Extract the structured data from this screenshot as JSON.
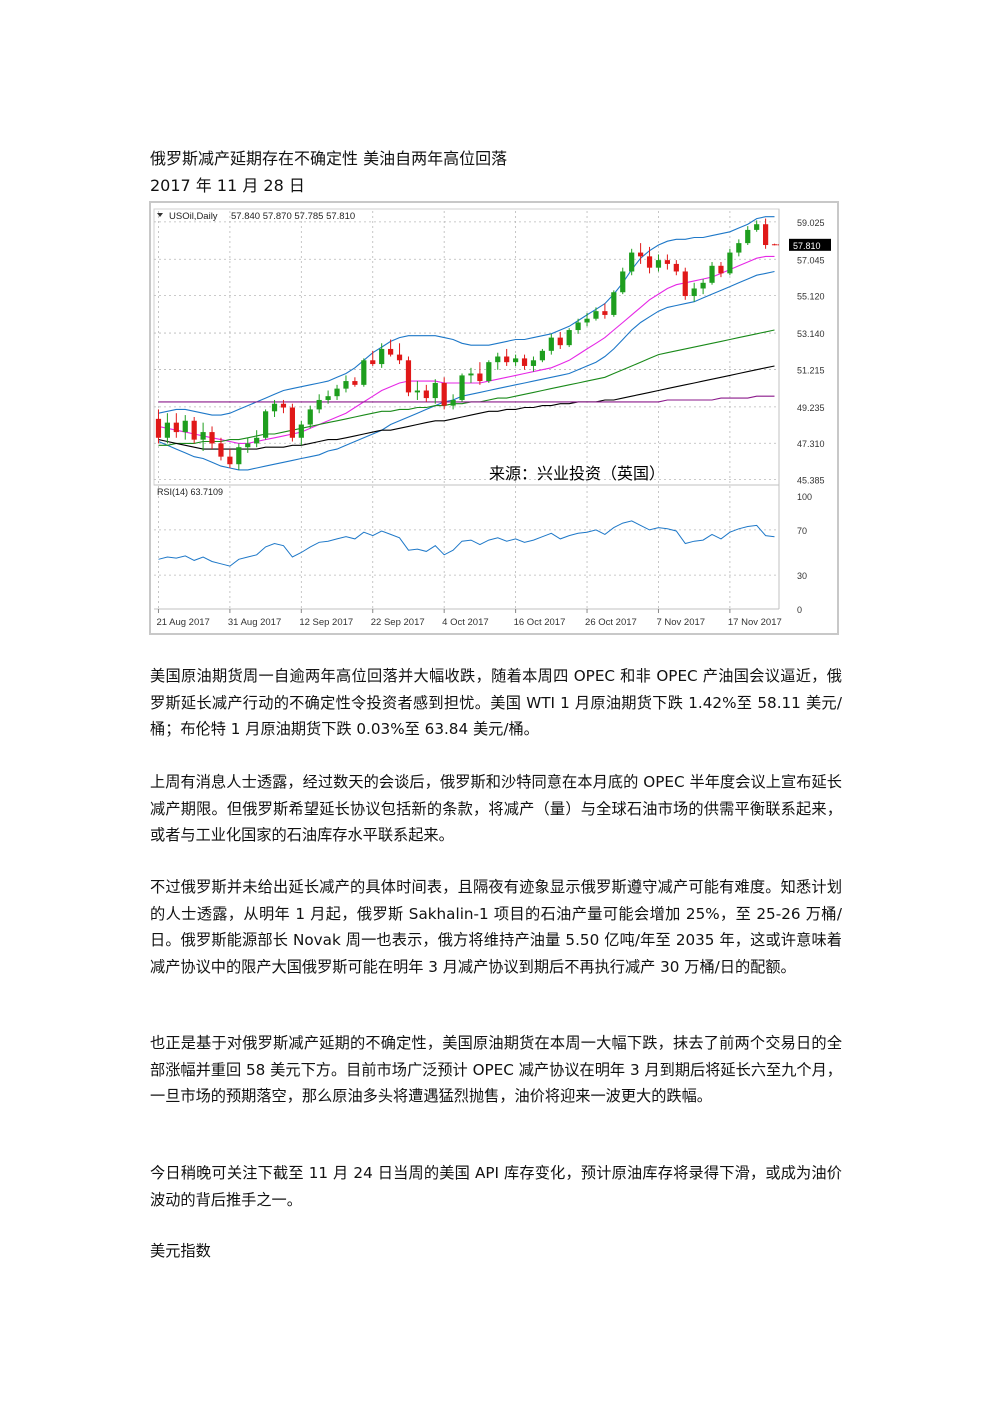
{
  "article": {
    "title": "俄罗斯减产延期存在不确定性 美油自两年高位回落",
    "date": "2017 年 11 月 28 日",
    "paragraphs": [
      "美国原油期货周一自逾两年高位回落并大幅收跌，随着本周四 OPEC 和非 OPEC 产油国会议逼近，俄罗斯延长减产行动的不确定性令投资者感到担忧。美国 WTI 1 月原油期货下跌 1.42%至 58.11 美元/桶；布伦特 1 月原油期货下跌 0.03%至 63.84 美元/桶。",
      "上周有消息人士透露，经过数天的会谈后，俄罗斯和沙特同意在本月底的 OPEC 半年度会议上宣布延长减产期限。但俄罗斯希望延长协议包括新的条款，将减产（量）与全球石油市场的供需平衡联系起来，或者与工业化国家的石油库存水平联系起来。",
      "不过俄罗斯并未给出延长减产的具体时间表，且隔夜有迹象显示俄罗斯遵守减产可能有难度。知悉计划的人士透露，从明年 1 月起，俄罗斯 Sakhalin-1 项目的石油产量可能会增加 25%，至 25-26 万桶/日。俄罗斯能源部长 Novak 周一也表示，俄方将维持产油量 5.50 亿吨/年至 2035 年，这或许意味着减产协议中的限产大国俄罗斯可能在明年 3 月减产协议到期后不再执行减产 30 万桶/日的配额。",
      "也正是基于对俄罗斯减产延期的不确定性，美国原油期货在本周一大幅下跌，抹去了前两个交易日的全部涨幅并重回 58 美元下方。目前市场广泛预计 OPEC 减产协议在明年 3 月到期后将延长六至九个月，一旦市场的预期落空，那么原油多头将遭遇猛烈抛售，油价将迎来一波更大的跌幅。",
      "今日稍晚可关注下截至 11 月 24 日当周的美国 API 库存变化，预计原油库存将录得下滑，或成为油价波动的背后推手之一。",
      "美元指数"
    ]
  },
  "chart_data": {
    "type": "candlestick",
    "title": "USOil,Daily  57.840 57.870 57.785 57.810",
    "symbol_label": "USOil,Daily",
    "ohlc_header": "57.840 57.870 57.785 57.810",
    "current_price_label": "57.810",
    "watermark": "来源：兴业投资（英国）",
    "price_axis": {
      "tick_labels": [
        "59.025",
        "57.045",
        "55.120",
        "53.140",
        "51.215",
        "49.235",
        "47.310",
        "45.385"
      ],
      "ticks": [
        59.025,
        57.045,
        55.12,
        53.14,
        51.215,
        49.235,
        47.31,
        45.385
      ],
      "ylim": [
        45.1,
        59.6
      ]
    },
    "x_tick_labels": [
      "21 Aug 2017",
      "31 Aug 2017",
      "12 Sep 2017",
      "22 Sep 2017",
      "4 Oct 2017",
      "16 Oct 2017",
      "26 Oct 2017",
      "7 Nov 2017",
      "17 Nov 2017"
    ],
    "x_tick_index": [
      0,
      8,
      16,
      24,
      32,
      40,
      48,
      56,
      64
    ],
    "candles": [
      {
        "o": 48.6,
        "h": 49.1,
        "l": 47.3,
        "c": 47.6
      },
      {
        "o": 47.6,
        "h": 48.9,
        "l": 47.3,
        "c": 48.4
      },
      {
        "o": 48.4,
        "h": 48.9,
        "l": 47.6,
        "c": 47.9
      },
      {
        "o": 47.9,
        "h": 48.8,
        "l": 47.5,
        "c": 48.5
      },
      {
        "o": 48.5,
        "h": 48.7,
        "l": 47.3,
        "c": 47.5
      },
      {
        "o": 47.5,
        "h": 48.4,
        "l": 46.9,
        "c": 47.9
      },
      {
        "o": 47.9,
        "h": 48.2,
        "l": 47.0,
        "c": 47.3
      },
      {
        "o": 47.3,
        "h": 47.6,
        "l": 46.4,
        "c": 46.6
      },
      {
        "o": 46.6,
        "h": 47.0,
        "l": 46.0,
        "c": 46.2
      },
      {
        "o": 46.2,
        "h": 47.3,
        "l": 45.9,
        "c": 47.1
      },
      {
        "o": 47.1,
        "h": 47.6,
        "l": 46.8,
        "c": 47.3
      },
      {
        "o": 47.3,
        "h": 48.0,
        "l": 47.1,
        "c": 47.6
      },
      {
        "o": 47.6,
        "h": 49.1,
        "l": 47.5,
        "c": 49.0
      },
      {
        "o": 49.0,
        "h": 49.6,
        "l": 48.7,
        "c": 49.4
      },
      {
        "o": 49.4,
        "h": 49.6,
        "l": 48.9,
        "c": 49.2
      },
      {
        "o": 49.2,
        "h": 49.4,
        "l": 47.4,
        "c": 47.6
      },
      {
        "o": 47.6,
        "h": 48.5,
        "l": 47.2,
        "c": 48.3
      },
      {
        "o": 48.3,
        "h": 49.3,
        "l": 48.1,
        "c": 49.1
      },
      {
        "o": 49.1,
        "h": 49.9,
        "l": 48.9,
        "c": 49.6
      },
      {
        "o": 49.6,
        "h": 50.1,
        "l": 49.4,
        "c": 49.8
      },
      {
        "o": 49.8,
        "h": 50.4,
        "l": 49.6,
        "c": 50.2
      },
      {
        "o": 50.2,
        "h": 50.9,
        "l": 50.0,
        "c": 50.6
      },
      {
        "o": 50.6,
        "h": 50.8,
        "l": 50.3,
        "c": 50.4
      },
      {
        "o": 50.4,
        "h": 51.8,
        "l": 50.3,
        "c": 51.7
      },
      {
        "o": 51.7,
        "h": 52.2,
        "l": 51.4,
        "c": 51.5
      },
      {
        "o": 51.5,
        "h": 52.6,
        "l": 51.3,
        "c": 52.3
      },
      {
        "o": 52.3,
        "h": 52.8,
        "l": 51.9,
        "c": 52.0
      },
      {
        "o": 52.0,
        "h": 52.6,
        "l": 51.5,
        "c": 51.7
      },
      {
        "o": 51.7,
        "h": 51.9,
        "l": 49.8,
        "c": 50.0
      },
      {
        "o": 50.0,
        "h": 50.6,
        "l": 49.6,
        "c": 50.1
      },
      {
        "o": 50.1,
        "h": 50.4,
        "l": 49.5,
        "c": 49.7
      },
      {
        "o": 49.7,
        "h": 50.7,
        "l": 49.4,
        "c": 50.5
      },
      {
        "o": 50.5,
        "h": 50.8,
        "l": 49.1,
        "c": 49.3
      },
      {
        "o": 49.3,
        "h": 49.9,
        "l": 49.1,
        "c": 49.6
      },
      {
        "o": 49.6,
        "h": 51.0,
        "l": 49.5,
        "c": 50.9
      },
      {
        "o": 50.9,
        "h": 51.3,
        "l": 50.5,
        "c": 51.0
      },
      {
        "o": 51.0,
        "h": 51.6,
        "l": 50.4,
        "c": 50.6
      },
      {
        "o": 50.6,
        "h": 51.7,
        "l": 50.5,
        "c": 51.6
      },
      {
        "o": 51.6,
        "h": 52.1,
        "l": 51.2,
        "c": 51.9
      },
      {
        "o": 51.9,
        "h": 52.3,
        "l": 51.4,
        "c": 51.6
      },
      {
        "o": 51.6,
        "h": 52.0,
        "l": 51.4,
        "c": 51.8
      },
      {
        "o": 51.8,
        "h": 52.0,
        "l": 51.2,
        "c": 51.4
      },
      {
        "o": 51.4,
        "h": 51.9,
        "l": 51.1,
        "c": 51.7
      },
      {
        "o": 51.7,
        "h": 52.3,
        "l": 51.6,
        "c": 52.2
      },
      {
        "o": 52.2,
        "h": 53.1,
        "l": 52.0,
        "c": 52.9
      },
      {
        "o": 52.9,
        "h": 53.2,
        "l": 52.3,
        "c": 52.5
      },
      {
        "o": 52.5,
        "h": 53.4,
        "l": 52.4,
        "c": 53.3
      },
      {
        "o": 53.3,
        "h": 53.9,
        "l": 53.1,
        "c": 53.7
      },
      {
        "o": 53.7,
        "h": 54.2,
        "l": 53.5,
        "c": 53.9
      },
      {
        "o": 53.9,
        "h": 54.5,
        "l": 53.8,
        "c": 54.3
      },
      {
        "o": 54.3,
        "h": 54.7,
        "l": 53.9,
        "c": 54.1
      },
      {
        "o": 54.1,
        "h": 55.4,
        "l": 54.0,
        "c": 55.3
      },
      {
        "o": 55.3,
        "h": 56.6,
        "l": 55.2,
        "c": 56.4
      },
      {
        "o": 56.4,
        "h": 57.6,
        "l": 56.2,
        "c": 57.4
      },
      {
        "o": 57.4,
        "h": 57.9,
        "l": 56.8,
        "c": 57.2
      },
      {
        "o": 57.2,
        "h": 57.7,
        "l": 56.3,
        "c": 56.6
      },
      {
        "o": 56.6,
        "h": 57.3,
        "l": 56.4,
        "c": 57.0
      },
      {
        "o": 57.0,
        "h": 57.3,
        "l": 56.5,
        "c": 56.8
      },
      {
        "o": 56.8,
        "h": 57.0,
        "l": 56.2,
        "c": 56.4
      },
      {
        "o": 56.4,
        "h": 56.6,
        "l": 54.9,
        "c": 55.1
      },
      {
        "o": 55.1,
        "h": 55.8,
        "l": 54.8,
        "c": 55.5
      },
      {
        "o": 55.5,
        "h": 56.0,
        "l": 55.2,
        "c": 55.8
      },
      {
        "o": 55.8,
        "h": 56.9,
        "l": 55.7,
        "c": 56.7
      },
      {
        "o": 56.7,
        "h": 56.9,
        "l": 56.1,
        "c": 56.3
      },
      {
        "o": 56.3,
        "h": 57.6,
        "l": 56.2,
        "c": 57.4
      },
      {
        "o": 57.4,
        "h": 58.1,
        "l": 57.2,
        "c": 57.9
      },
      {
        "o": 57.9,
        "h": 58.8,
        "l": 57.8,
        "c": 58.6
      },
      {
        "o": 58.6,
        "h": 59.1,
        "l": 58.5,
        "c": 58.9
      },
      {
        "o": 58.9,
        "h": 59.2,
        "l": 57.6,
        "c": 57.8
      },
      {
        "o": 57.84,
        "h": 57.87,
        "l": 57.785,
        "c": 57.81
      }
    ],
    "overlays": [
      {
        "name": "bollinger-upper",
        "color": "#1e78c8",
        "values": [
          48.9,
          49.0,
          49.1,
          49.1,
          49.0,
          48.9,
          48.8,
          48.8,
          48.9,
          49.1,
          49.3,
          49.5,
          49.7,
          49.9,
          50.1,
          50.2,
          50.3,
          50.4,
          50.5,
          50.6,
          50.8,
          51.0,
          51.3,
          51.7,
          52.1,
          52.4,
          52.7,
          52.9,
          53.0,
          53.0,
          53.0,
          53.0,
          52.9,
          52.8,
          52.6,
          52.5,
          52.5,
          52.5,
          52.6,
          52.7,
          52.8,
          52.8,
          52.9,
          53.0,
          53.1,
          53.3,
          53.5,
          53.8,
          54.1,
          54.4,
          54.7,
          55.2,
          55.8,
          56.5,
          57.1,
          57.5,
          57.8,
          58.0,
          58.1,
          58.1,
          58.2,
          58.2,
          58.3,
          58.4,
          58.5,
          58.7,
          58.9,
          59.2,
          59.3,
          59.3
        ]
      },
      {
        "name": "bollinger-mid",
        "color": "#e628e6",
        "values": [
          48.2,
          48.1,
          48.0,
          47.9,
          47.8,
          47.7,
          47.6,
          47.5,
          47.4,
          47.3,
          47.3,
          47.4,
          47.5,
          47.6,
          47.7,
          47.8,
          47.9,
          48.1,
          48.3,
          48.5,
          48.7,
          48.9,
          49.2,
          49.5,
          49.8,
          50.1,
          50.3,
          50.5,
          50.6,
          50.6,
          50.6,
          50.6,
          50.5,
          50.5,
          50.5,
          50.5,
          50.5,
          50.6,
          50.7,
          50.8,
          50.9,
          51.0,
          51.1,
          51.2,
          51.3,
          51.5,
          51.7,
          52.0,
          52.3,
          52.6,
          52.9,
          53.3,
          53.7,
          54.1,
          54.5,
          54.9,
          55.2,
          55.5,
          55.7,
          55.8,
          55.9,
          56.0,
          56.1,
          56.3,
          56.5,
          56.7,
          56.9,
          57.1,
          57.2,
          57.2
        ]
      },
      {
        "name": "bollinger-lower",
        "color": "#1e78c8",
        "values": [
          47.4,
          47.2,
          47.0,
          46.8,
          46.6,
          46.5,
          46.3,
          46.1,
          46.0,
          45.9,
          45.9,
          46.0,
          46.1,
          46.2,
          46.3,
          46.4,
          46.5,
          46.6,
          46.7,
          46.9,
          47.0,
          47.2,
          47.4,
          47.6,
          47.8,
          48.0,
          48.3,
          48.5,
          48.7,
          48.9,
          49.1,
          49.3,
          49.5,
          49.6,
          49.8,
          49.9,
          50.0,
          50.1,
          50.2,
          50.3,
          50.4,
          50.5,
          50.6,
          50.7,
          50.8,
          50.9,
          51.0,
          51.2,
          51.4,
          51.6,
          51.9,
          52.3,
          52.8,
          53.3,
          53.7,
          54.0,
          54.3,
          54.5,
          54.6,
          54.7,
          54.8,
          55.0,
          55.2,
          55.4,
          55.6,
          55.8,
          56.0,
          56.2,
          56.3,
          56.4
        ]
      },
      {
        "name": "sma-green",
        "color": "#1a8a1a",
        "values": [
          47.2,
          47.2,
          47.3,
          47.3,
          47.3,
          47.4,
          47.4,
          47.4,
          47.5,
          47.5,
          47.6,
          47.7,
          47.8,
          47.8,
          47.9,
          48.0,
          48.1,
          48.2,
          48.3,
          48.4,
          48.5,
          48.6,
          48.7,
          48.8,
          48.9,
          49.0,
          49.0,
          49.1,
          49.1,
          49.2,
          49.2,
          49.3,
          49.3,
          49.4,
          49.4,
          49.5,
          49.5,
          49.6,
          49.7,
          49.7,
          49.8,
          49.9,
          50.0,
          50.1,
          50.2,
          50.3,
          50.4,
          50.5,
          50.6,
          50.7,
          50.8,
          51.0,
          51.2,
          51.4,
          51.6,
          51.8,
          52.0,
          52.1,
          52.2,
          52.3,
          52.4,
          52.5,
          52.6,
          52.7,
          52.8,
          52.9,
          53.0,
          53.1,
          53.2,
          53.3
        ]
      },
      {
        "name": "sma-black",
        "color": "#000000",
        "values": [
          47.5,
          47.4,
          47.3,
          47.2,
          47.1,
          47.0,
          47.0,
          47.0,
          47.0,
          47.0,
          47.0,
          47.0,
          47.1,
          47.1,
          47.1,
          47.2,
          47.2,
          47.3,
          47.4,
          47.5,
          47.5,
          47.6,
          47.7,
          47.8,
          47.9,
          48.0,
          48.0,
          48.1,
          48.2,
          48.3,
          48.4,
          48.5,
          48.5,
          48.6,
          48.7,
          48.8,
          48.9,
          49.0,
          49.0,
          49.1,
          49.1,
          49.2,
          49.2,
          49.3,
          49.3,
          49.4,
          49.4,
          49.5,
          49.5,
          49.5,
          49.6,
          49.6,
          49.7,
          49.8,
          49.9,
          50.0,
          50.1,
          50.2,
          50.3,
          50.4,
          50.5,
          50.6,
          50.7,
          50.8,
          50.9,
          51.0,
          51.1,
          51.2,
          51.3,
          51.4
        ]
      },
      {
        "name": "sma-purple",
        "color": "#8b1a8b",
        "values": [
          49.5,
          49.5,
          49.5,
          49.5,
          49.5,
          49.5,
          49.5,
          49.5,
          49.5,
          49.5,
          49.5,
          49.5,
          49.5,
          49.5,
          49.5,
          49.5,
          49.5,
          49.5,
          49.5,
          49.5,
          49.5,
          49.5,
          49.5,
          49.5,
          49.5,
          49.5,
          49.5,
          49.5,
          49.5,
          49.5,
          49.5,
          49.5,
          49.5,
          49.5,
          49.5,
          49.5,
          49.5,
          49.5,
          49.5,
          49.5,
          49.5,
          49.5,
          49.5,
          49.5,
          49.5,
          49.5,
          49.5,
          49.5,
          49.5,
          49.5,
          49.5,
          49.5,
          49.5,
          49.5,
          49.5,
          49.5,
          49.5,
          49.6,
          49.6,
          49.6,
          49.6,
          49.6,
          49.6,
          49.7,
          49.7,
          49.7,
          49.7,
          49.8,
          49.8,
          49.8
        ]
      }
    ],
    "rsi": {
      "label": "RSI(14) 63.7109",
      "value": 63.7109,
      "tick_labels": [
        "100",
        "70",
        "30",
        "0"
      ],
      "ticks": [
        100,
        70,
        30,
        0
      ],
      "ylim": [
        0,
        100
      ],
      "color": "#1e78c8",
      "values": [
        44,
        46,
        45,
        47,
        43,
        46,
        42,
        40,
        38,
        44,
        46,
        48,
        55,
        58,
        56,
        46,
        50,
        55,
        59,
        60,
        62,
        64,
        62,
        68,
        65,
        69,
        66,
        63,
        52,
        53,
        51,
        56,
        48,
        52,
        60,
        61,
        57,
        61,
        63,
        60,
        62,
        59,
        61,
        64,
        67,
        62,
        65,
        67,
        68,
        70,
        66,
        72,
        76,
        78,
        74,
        70,
        72,
        71,
        69,
        58,
        60,
        61,
        66,
        62,
        68,
        71,
        73,
        74,
        65,
        64
      ]
    },
    "colors": {
      "bull": "#1e9e1e",
      "bear": "#e01818",
      "grid": "#b8b8b8",
      "axis_text": "#333333"
    }
  }
}
